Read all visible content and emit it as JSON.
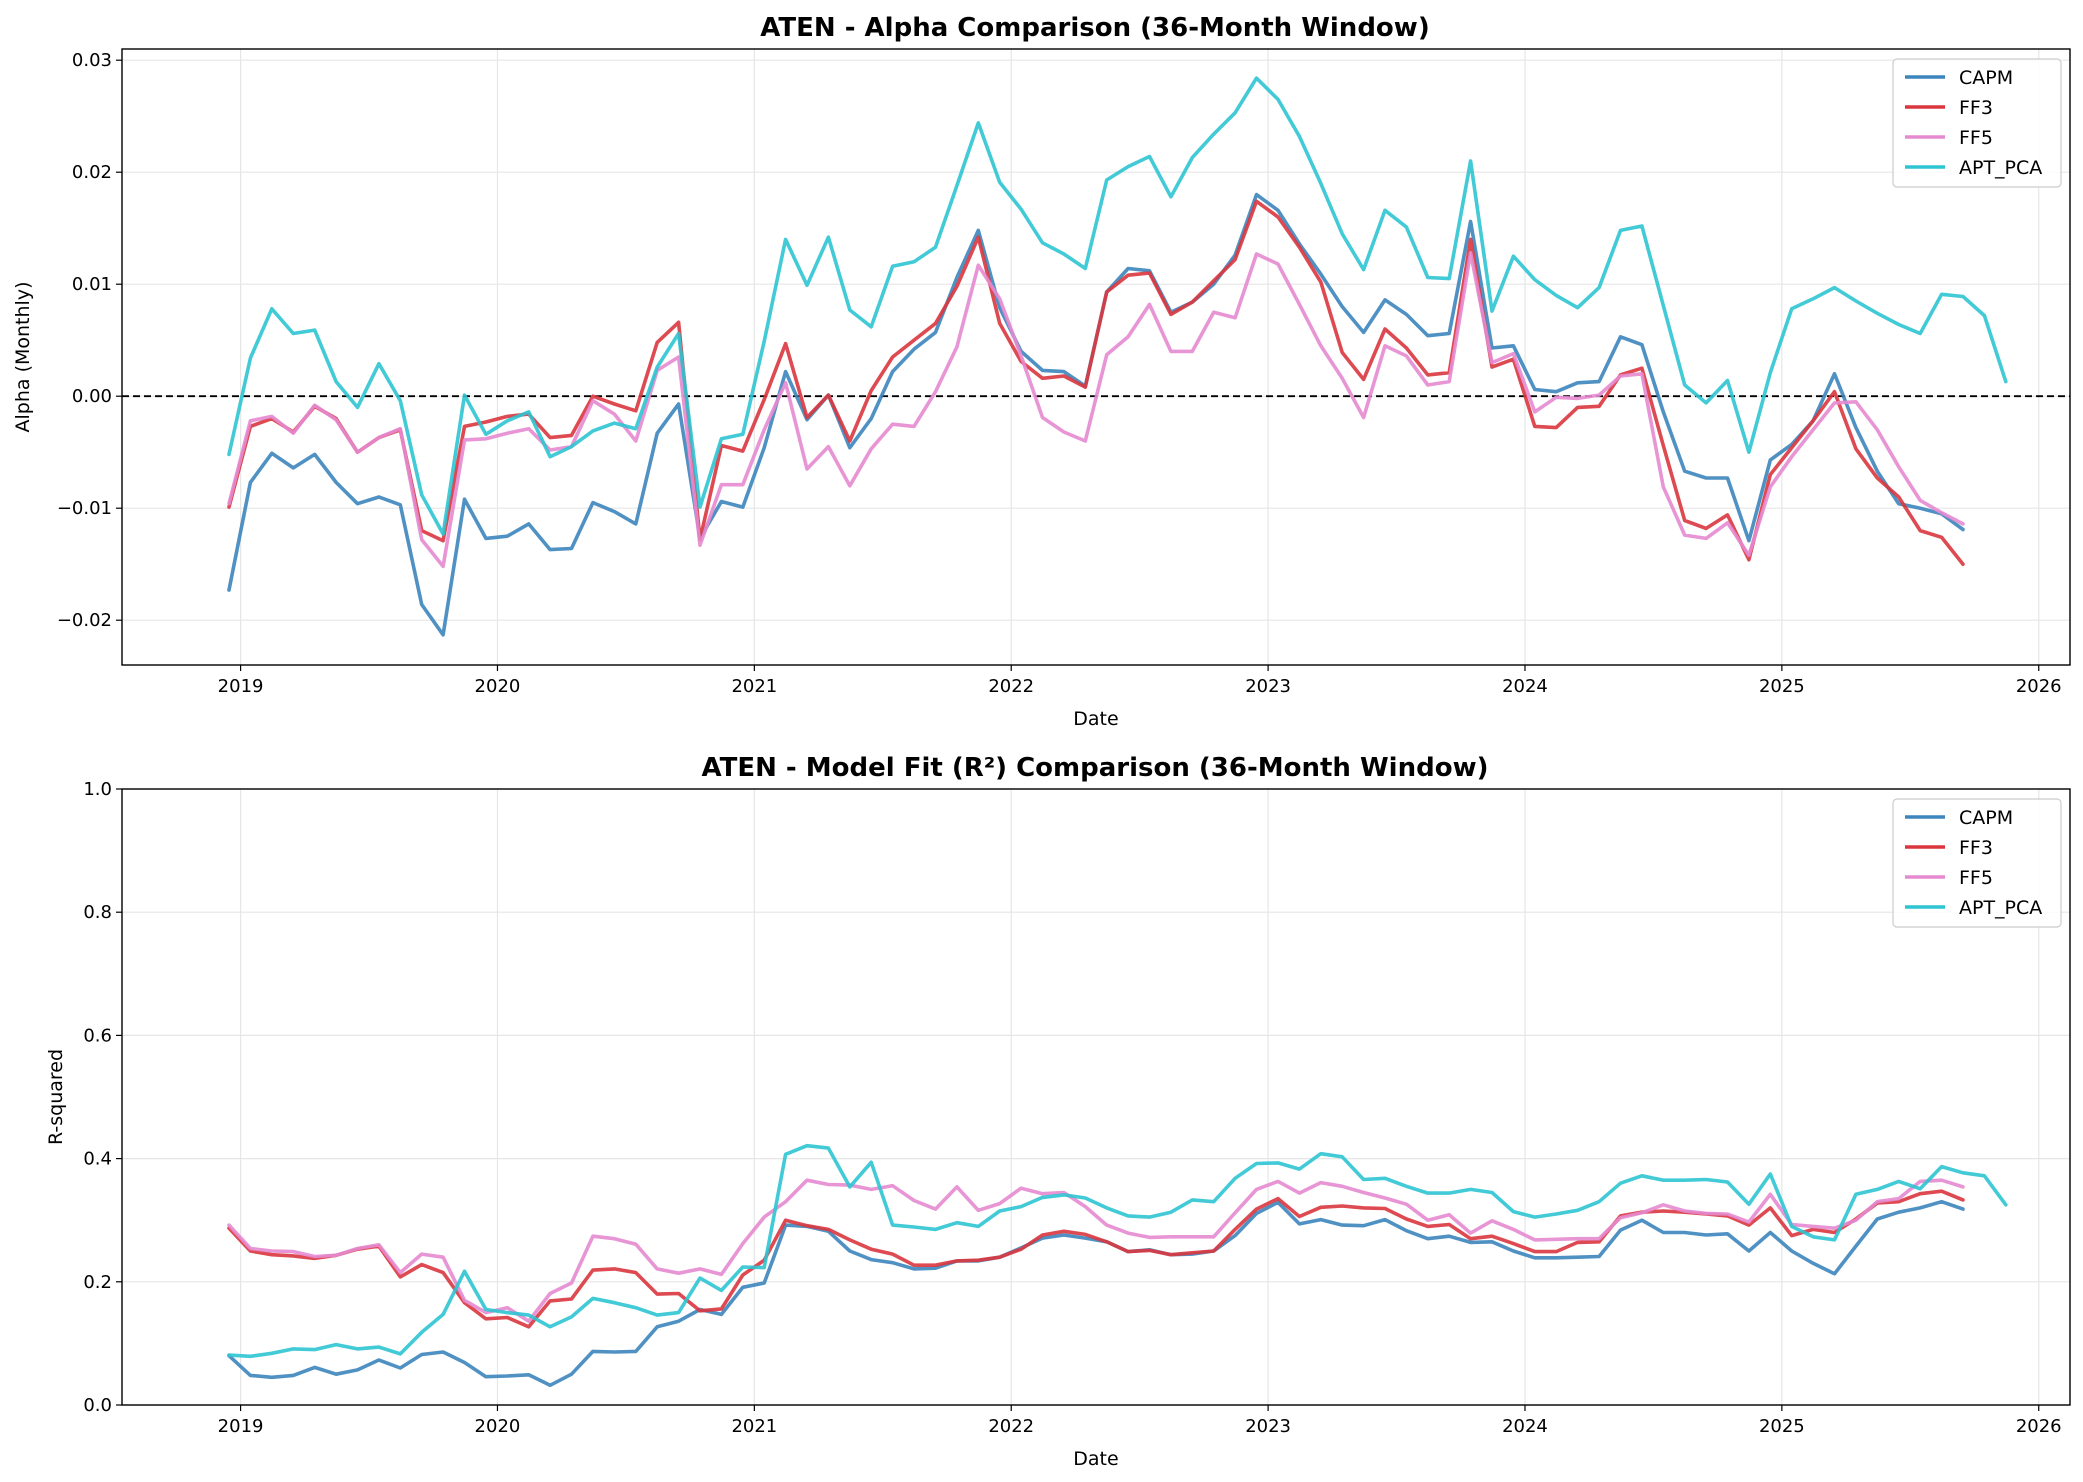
{
  "colors": {
    "CAPM": "#3d85bd",
    "FF3": "#d9363e",
    "FF5": "#e58ad0",
    "APT_PCA": "#2ec4d2",
    "zero_line": "#000000"
  },
  "chart_data": [
    {
      "type": "line",
      "title": "ATEN - Alpha Comparison (36-Month Window)",
      "xlabel": "Date",
      "ylabel": "Alpha (Monthly)",
      "xlim": [
        "2018-07-15",
        "2026-02-15"
      ],
      "ylim": [
        -0.024,
        0.031
      ],
      "xticks": [
        "2019",
        "2020",
        "2021",
        "2022",
        "2023",
        "2024",
        "2025",
        "2026"
      ],
      "yticks": [
        -0.02,
        -0.01,
        0.0,
        0.01,
        0.02,
        0.03
      ],
      "ytick_labels": [
        "−0.02",
        "−0.01",
        "0.00",
        "0.01",
        "0.02",
        "0.03"
      ],
      "grid": true,
      "legend": "top-right",
      "reference_line": 0,
      "start": "2018-12",
      "series": [
        {
          "name": "CAPM",
          "values": [
            -0.0173,
            -0.0077,
            -0.0051,
            -0.0064,
            -0.0052,
            -0.0077,
            -0.0096,
            -0.009,
            -0.0097,
            -0.0186,
            -0.0213,
            -0.0092,
            -0.0127,
            -0.0125,
            -0.0114,
            -0.0137,
            -0.0136,
            -0.0095,
            -0.0103,
            -0.0114,
            -0.0033,
            -0.0007,
            -0.0127,
            -0.0094,
            -0.0099,
            -0.0046,
            0.0022,
            -0.0021,
            0.0001,
            -0.0046,
            -0.002,
            0.0022,
            0.0042,
            0.0057,
            0.0106,
            0.0148,
            0.0079,
            0.004,
            0.0023,
            0.0022,
            0.0009,
            0.0093,
            0.0114,
            0.0112,
            0.0075,
            0.0084,
            0.01,
            0.0126,
            0.018,
            0.0166,
            0.0136,
            0.0109,
            0.008,
            0.0057,
            0.0086,
            0.0073,
            0.0054,
            0.0056,
            0.0156,
            0.0043,
            0.0045,
            0.0006,
            0.0004,
            0.0012,
            0.0013,
            0.0053,
            0.0046,
            -0.0014,
            -0.0067,
            -0.0073,
            -0.0073,
            -0.0129,
            -0.0057,
            -0.0043,
            -0.0022,
            0.002,
            -0.0028,
            -0.0067,
            -0.0096,
            -0.01,
            -0.0105,
            -0.0119
          ]
        },
        {
          "name": "FF3",
          "values": [
            -0.0099,
            -0.0027,
            -0.002,
            -0.0032,
            -0.0009,
            -0.002,
            -0.005,
            -0.0037,
            -0.003,
            -0.012,
            -0.0129,
            -0.0027,
            -0.0023,
            -0.0018,
            -0.0016,
            -0.0037,
            -0.0035,
            0.0,
            -0.0007,
            -0.0013,
            0.0048,
            0.0066,
            -0.0128,
            -0.0044,
            -0.0049,
            -0.0003,
            0.0047,
            -0.0019,
            0.0001,
            -0.004,
            0.0005,
            0.0035,
            0.005,
            0.0065,
            0.0098,
            0.0142,
            0.0065,
            0.0031,
            0.0016,
            0.0018,
            0.0008,
            0.0093,
            0.0108,
            0.011,
            0.0073,
            0.0084,
            0.0103,
            0.0122,
            0.0174,
            0.016,
            0.0133,
            0.0102,
            0.0039,
            0.0015,
            0.006,
            0.0043,
            0.0019,
            0.0021,
            0.014,
            0.0026,
            0.0033,
            -0.0027,
            -0.0028,
            -0.001,
            -0.0009,
            0.0019,
            0.0025,
            -0.0044,
            -0.0111,
            -0.0118,
            -0.0106,
            -0.0146,
            -0.007,
            -0.0046,
            -0.0022,
            0.0004,
            -0.0047,
            -0.0073,
            -0.009,
            -0.012,
            -0.0126,
            -0.015
          ]
        },
        {
          "name": "FF5",
          "values": [
            -0.0096,
            -0.0022,
            -0.0018,
            -0.0033,
            -0.0008,
            -0.0021,
            -0.005,
            -0.0037,
            -0.0029,
            -0.0128,
            -0.0152,
            -0.0039,
            -0.0038,
            -0.0033,
            -0.0029,
            -0.0048,
            -0.0045,
            -0.0004,
            -0.0016,
            -0.004,
            0.0023,
            0.0035,
            -0.0133,
            -0.0079,
            -0.0079,
            -0.003,
            0.0012,
            -0.0065,
            -0.0045,
            -0.008,
            -0.0047,
            -0.0025,
            -0.0027,
            0.0004,
            0.0044,
            0.0117,
            0.0087,
            0.0036,
            -0.0019,
            -0.0032,
            -0.004,
            0.0037,
            0.0053,
            0.0082,
            0.004,
            0.004,
            0.0075,
            0.007,
            0.0127,
            0.0118,
            0.0082,
            0.0045,
            0.0016,
            -0.0019,
            0.0045,
            0.0036,
            0.001,
            0.0013,
            0.0128,
            0.003,
            0.0038,
            -0.0014,
            -0.0001,
            -0.0002,
            0.0001,
            0.0018,
            0.002,
            -0.0081,
            -0.0124,
            -0.0127,
            -0.0113,
            -0.0142,
            -0.0081,
            -0.0054,
            -0.003,
            -0.0006,
            -0.0005,
            -0.003,
            -0.0063,
            -0.0093,
            -0.0104,
            -0.0114
          ]
        },
        {
          "name": "APT_PCA",
          "values": [
            -0.0052,
            0.0034,
            0.0078,
            0.0056,
            0.0059,
            0.0013,
            -0.001,
            0.0029,
            -0.0004,
            -0.0088,
            -0.0123,
            0.0001,
            -0.0034,
            -0.0022,
            -0.0014,
            -0.0054,
            -0.0045,
            -0.0031,
            -0.0024,
            -0.0029,
            0.0026,
            0.0056,
            -0.0099,
            -0.0038,
            -0.0034,
            0.0049,
            0.014,
            0.0099,
            0.0142,
            0.0077,
            0.0062,
            0.0116,
            0.012,
            0.0133,
            0.0188,
            0.0244,
            0.0191,
            0.0167,
            0.0137,
            0.0127,
            0.0114,
            0.0193,
            0.0205,
            0.0214,
            0.0178,
            0.0213,
            0.0234,
            0.0253,
            0.0284,
            0.0265,
            0.0232,
            0.019,
            0.0145,
            0.0113,
            0.0166,
            0.0151,
            0.0106,
            0.0105,
            0.021,
            0.0076,
            0.0125,
            0.0104,
            0.009,
            0.0079,
            0.0097,
            0.0148,
            0.0152,
            0.0081,
            0.001,
            -0.0006,
            0.0014,
            -0.005,
            0.0021,
            0.0078,
            0.0087,
            0.0097,
            0.0085,
            0.0074,
            0.0064,
            0.0056,
            0.0091,
            0.0089,
            0.0072,
            0.0013
          ]
        }
      ]
    },
    {
      "type": "line",
      "title": "ATEN - Model Fit (R²) Comparison (36-Month Window)",
      "xlabel": "Date",
      "ylabel": "R-squared",
      "xlim": [
        "2018-07-15",
        "2026-02-15"
      ],
      "ylim": [
        0.0,
        1.0
      ],
      "xticks": [
        "2019",
        "2020",
        "2021",
        "2022",
        "2023",
        "2024",
        "2025",
        "2026"
      ],
      "yticks": [
        0.0,
        0.2,
        0.4,
        0.6,
        0.8,
        1.0
      ],
      "ytick_labels": [
        "0.0",
        "0.2",
        "0.4",
        "0.6",
        "0.8",
        "1.0"
      ],
      "grid": true,
      "legend": "top-right",
      "start": "2018-12",
      "series": [
        {
          "name": "CAPM",
          "values": [
            0.08,
            0.048,
            0.045,
            0.048,
            0.061,
            0.05,
            0.057,
            0.073,
            0.06,
            0.082,
            0.086,
            0.069,
            0.046,
            0.047,
            0.049,
            0.032,
            0.05,
            0.087,
            0.086,
            0.087,
            0.127,
            0.136,
            0.155,
            0.147,
            0.191,
            0.198,
            0.292,
            0.29,
            0.282,
            0.25,
            0.236,
            0.231,
            0.221,
            0.222,
            0.234,
            0.234,
            0.24,
            0.255,
            0.271,
            0.276,
            0.271,
            0.265,
            0.249,
            0.252,
            0.244,
            0.245,
            0.25,
            0.275,
            0.311,
            0.329,
            0.294,
            0.301,
            0.292,
            0.291,
            0.301,
            0.283,
            0.27,
            0.274,
            0.264,
            0.265,
            0.25,
            0.239,
            0.239,
            0.24,
            0.241,
            0.284,
            0.3,
            0.28,
            0.28,
            0.276,
            0.278,
            0.25,
            0.28,
            0.25,
            0.23,
            0.213,
            0.258,
            0.302,
            0.313,
            0.32,
            0.33,
            0.318
          ]
        },
        {
          "name": "FF3",
          "values": [
            0.287,
            0.25,
            0.244,
            0.242,
            0.238,
            0.243,
            0.253,
            0.258,
            0.208,
            0.228,
            0.215,
            0.166,
            0.14,
            0.142,
            0.127,
            0.169,
            0.172,
            0.219,
            0.221,
            0.215,
            0.18,
            0.181,
            0.153,
            0.156,
            0.211,
            0.235,
            0.3,
            0.291,
            0.285,
            0.268,
            0.253,
            0.245,
            0.227,
            0.227,
            0.234,
            0.235,
            0.24,
            0.253,
            0.276,
            0.282,
            0.277,
            0.265,
            0.249,
            0.251,
            0.244,
            0.247,
            0.25,
            0.285,
            0.318,
            0.335,
            0.306,
            0.321,
            0.323,
            0.32,
            0.319,
            0.302,
            0.29,
            0.293,
            0.27,
            0.274,
            0.262,
            0.249,
            0.249,
            0.264,
            0.265,
            0.307,
            0.313,
            0.315,
            0.313,
            0.31,
            0.307,
            0.292,
            0.32,
            0.275,
            0.285,
            0.28,
            0.302,
            0.328,
            0.33,
            0.343,
            0.347,
            0.333
          ]
        },
        {
          "name": "FF5",
          "values": [
            0.292,
            0.254,
            0.25,
            0.249,
            0.241,
            0.243,
            0.254,
            0.26,
            0.215,
            0.245,
            0.24,
            0.17,
            0.15,
            0.158,
            0.136,
            0.181,
            0.198,
            0.274,
            0.27,
            0.261,
            0.221,
            0.214,
            0.221,
            0.212,
            0.262,
            0.305,
            0.33,
            0.365,
            0.358,
            0.357,
            0.35,
            0.356,
            0.332,
            0.318,
            0.354,
            0.316,
            0.327,
            0.352,
            0.343,
            0.345,
            0.322,
            0.292,
            0.279,
            0.272,
            0.273,
            0.273,
            0.273,
            0.312,
            0.35,
            0.363,
            0.344,
            0.361,
            0.355,
            0.345,
            0.336,
            0.326,
            0.3,
            0.309,
            0.279,
            0.299,
            0.285,
            0.268,
            0.269,
            0.27,
            0.27,
            0.304,
            0.312,
            0.325,
            0.315,
            0.311,
            0.31,
            0.297,
            0.342,
            0.293,
            0.29,
            0.287,
            0.3,
            0.33,
            0.335,
            0.363,
            0.365,
            0.354
          ]
        },
        {
          "name": "APT_PCA",
          "values": [
            0.081,
            0.079,
            0.084,
            0.091,
            0.09,
            0.098,
            0.091,
            0.094,
            0.083,
            0.118,
            0.147,
            0.217,
            0.155,
            0.15,
            0.146,
            0.127,
            0.143,
            0.173,
            0.166,
            0.158,
            0.146,
            0.15,
            0.206,
            0.186,
            0.224,
            0.223,
            0.407,
            0.421,
            0.417,
            0.354,
            0.394,
            0.292,
            0.289,
            0.285,
            0.296,
            0.29,
            0.315,
            0.322,
            0.337,
            0.341,
            0.336,
            0.32,
            0.307,
            0.305,
            0.313,
            0.333,
            0.33,
            0.368,
            0.392,
            0.393,
            0.383,
            0.408,
            0.403,
            0.366,
            0.368,
            0.355,
            0.344,
            0.344,
            0.35,
            0.345,
            0.314,
            0.305,
            0.31,
            0.316,
            0.33,
            0.36,
            0.372,
            0.365,
            0.365,
            0.366,
            0.362,
            0.326,
            0.375,
            0.29,
            0.273,
            0.268,
            0.342,
            0.35,
            0.363,
            0.351,
            0.387,
            0.377,
            0.372,
            0.325
          ]
        }
      ]
    }
  ]
}
